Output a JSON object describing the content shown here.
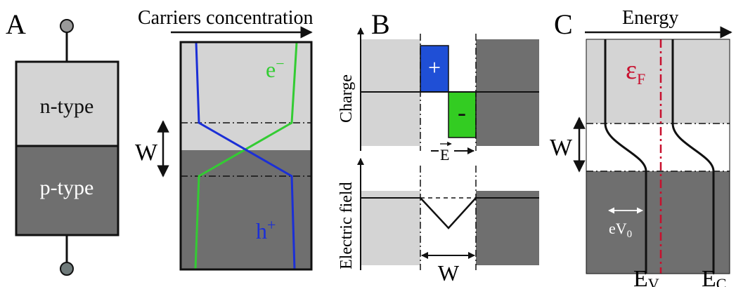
{
  "colors": {
    "n_region": "#d4d4d4",
    "p_region": "#6f6f6f",
    "electron": "#33cc33",
    "hole": "#1b2fd6",
    "positive_charge": "#1f4fd6",
    "negative_charge": "#33cc22",
    "fermi_level": "#c8102e",
    "line": "#111111"
  },
  "panel_a": {
    "letter": "A",
    "n_type": "n-type",
    "p_type": "p-type",
    "carriers_title": "Carriers concentration",
    "width_label": "W",
    "electron_label": "e",
    "electron_sup": "−",
    "hole_label": "h",
    "hole_sup": "+"
  },
  "panel_b": {
    "letter": "B",
    "charge_axis": "Charge",
    "field_axis": "Electric field",
    "plus_sign": "+",
    "minus_sign": "-",
    "field_vector": "E",
    "width_label": "W"
  },
  "panel_c": {
    "letter": "C",
    "energy_title": "Energy",
    "fermi_symbol": "ε",
    "fermi_sub": "F",
    "width_label": "W",
    "bias_label": "eV",
    "bias_sub": "0",
    "ev_label": "E",
    "ev_sub": "V",
    "ec_label": "E",
    "ec_sub": "C"
  }
}
